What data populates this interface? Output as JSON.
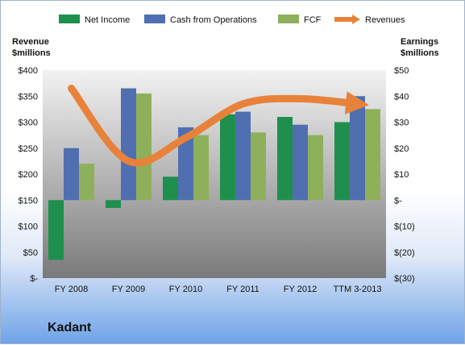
{
  "company": "Kadant",
  "chart_data": {
    "type": "bar",
    "categories": [
      "FY 2008",
      "FY 2009",
      "FY 2010",
      "FY 2011",
      "FY 2012",
      "TTM 3-2013"
    ],
    "series": [
      {
        "name": "Net Income",
        "axis": "right",
        "values": [
          -23,
          -3,
          9,
          33,
          32,
          30
        ],
        "color": "#1f8f4e"
      },
      {
        "name": "Cash from Operations",
        "axis": "right",
        "values": [
          20,
          43,
          28,
          34,
          29,
          40
        ],
        "color": "#4f6fb0"
      },
      {
        "name": "FCF",
        "axis": "right",
        "values": [
          14,
          41,
          25,
          26,
          25,
          35
        ],
        "color": "#8fb05a"
      },
      {
        "name": "Revenues",
        "axis": "left",
        "type": "line",
        "values": [
          365,
          225,
          270,
          335,
          345,
          335
        ],
        "color": "#e8823a"
      }
    ],
    "ylabel_left": [
      "Revenue",
      "$millions"
    ],
    "ylabel_right": [
      "Earnings",
      "$millions"
    ],
    "ylim_left": [
      0,
      400
    ],
    "ylim_right": [
      -30,
      50
    ],
    "left_ticks": [
      "$-",
      "$50",
      "$100",
      "$150",
      "$200",
      "$250",
      "$300",
      "$350",
      "$400"
    ],
    "right_ticks": [
      "$(30)",
      "$(20)",
      "$(10)",
      "$-",
      "$10",
      "$20",
      "$30",
      "$40",
      "$50"
    ],
    "legend_position": "top",
    "grid": false
  }
}
